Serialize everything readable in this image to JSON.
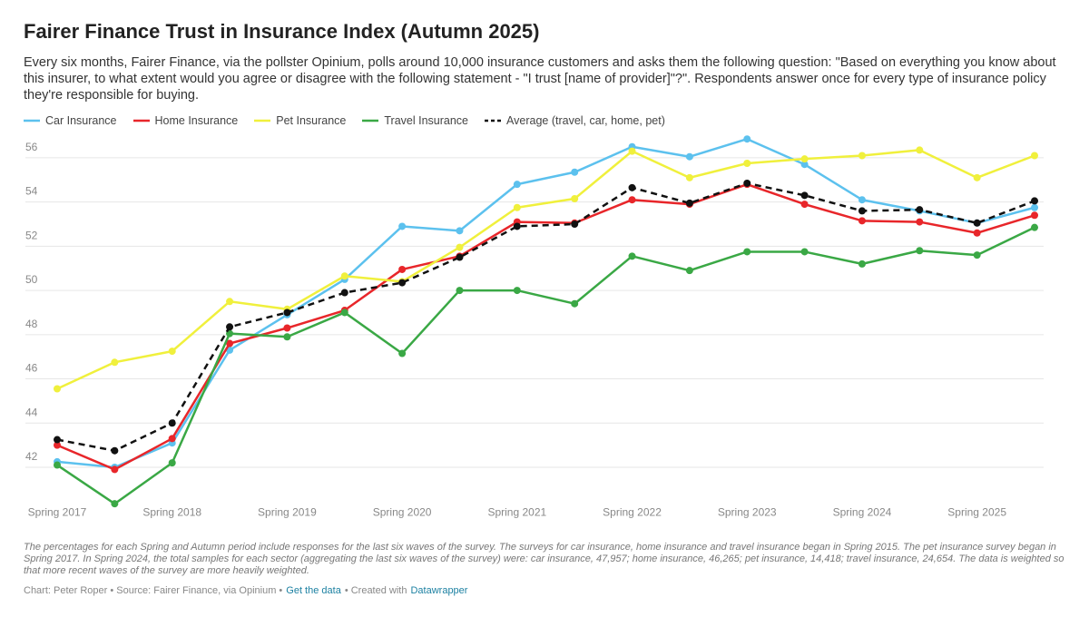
{
  "chart_data": {
    "type": "line",
    "title": "Fairer Finance Trust in Insurance Index (Autumn 2025)",
    "subtitle": "Every six months, Fairer Finance, via the pollster Opinium, polls around 10,000 insurance customers and asks them the following question: \"Based on everything you know about this insurer, to what extent would you agree or disagree with the following statement - \"I trust [name of provider]\"?\". Respondents answer once for every type of insurance policy they're responsible for buying.",
    "categories": [
      "Spring 2017",
      null,
      "Spring 2018",
      null,
      "Spring 2019",
      null,
      "Spring 2020",
      null,
      "Spring 2021",
      null,
      "Spring 2022",
      null,
      "Spring 2023",
      null,
      "Spring 2024",
      null,
      "Spring 2025",
      null
    ],
    "series": [
      {
        "name": "Car Insurance",
        "color": "#5cc1ee",
        "values": [
          42.25,
          42.0,
          43.1,
          47.3,
          48.9,
          50.5,
          52.9,
          52.7,
          54.8,
          55.35,
          56.5,
          56.05,
          56.85,
          55.7,
          54.1,
          53.6,
          53.05,
          53.75
        ]
      },
      {
        "name": "Home Insurance",
        "color": "#e8262a",
        "values": [
          43.0,
          41.9,
          43.3,
          47.6,
          48.3,
          49.1,
          50.95,
          51.55,
          53.1,
          53.05,
          54.1,
          53.9,
          54.8,
          53.9,
          53.15,
          53.1,
          52.6,
          53.4
        ]
      },
      {
        "name": "Pet Insurance",
        "color": "#f0f03c",
        "values": [
          45.55,
          46.75,
          47.25,
          49.5,
          49.15,
          50.65,
          50.4,
          51.95,
          53.75,
          54.15,
          56.3,
          55.1,
          55.75,
          55.95,
          56.1,
          56.35,
          55.1,
          56.1
        ]
      },
      {
        "name": "Travel Insurance",
        "color": "#3aa845",
        "values": [
          42.1,
          40.35,
          42.2,
          48.05,
          47.9,
          49.0,
          47.15,
          50.0,
          50.0,
          49.4,
          51.55,
          50.9,
          51.75,
          51.75,
          51.2,
          51.8,
          51.6,
          52.85
        ]
      },
      {
        "name": "Average (travel, car, home, pet)",
        "color": "#111111",
        "dashed": true,
        "values": [
          43.25,
          42.75,
          44.0,
          48.35,
          49.0,
          49.9,
          50.35,
          51.5,
          52.9,
          53.0,
          54.65,
          53.95,
          54.85,
          54.3,
          53.6,
          53.65,
          53.05,
          54.05
        ]
      }
    ],
    "ylim": [
      40.3,
      56.9
    ],
    "yticks": [
      42,
      44,
      46,
      48,
      50,
      52,
      54,
      56
    ],
    "grid": true,
    "notes": "The percentages for each Spring and Autumn period include responses for the last six waves of the survey. The surveys for car insurance, home insurance and travel insurance began in Spring 2015. The pet insurance survey began in Spring 2017. In Spring 2024, the total samples for each sector (aggregating the last six waves of the survey) were: car insurance, 47,957; home insurance, 46,265; pet insurance, 14,418; travel insurance, 24,654. The data is weighted so that more recent waves of the survey are more heavily weighted.",
    "credits": [
      "Chart: Peter Roper • Source: Fairer Finance, via Opinium •",
      "Get the data",
      "• Created with",
      "Datawrapper"
    ]
  }
}
